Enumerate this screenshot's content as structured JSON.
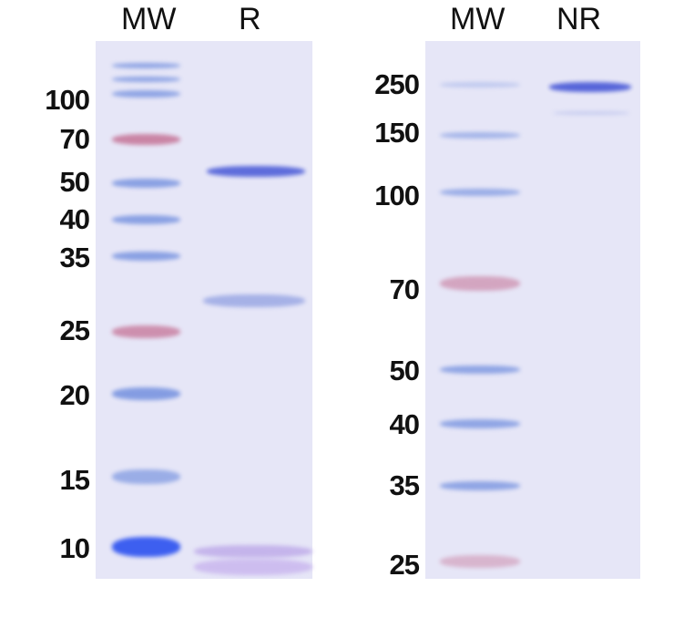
{
  "left_gel": {
    "lane_labels": [
      "MW",
      "R"
    ],
    "marker_labels": [
      "100",
      "70",
      "50",
      "40",
      "35",
      "25",
      "20",
      "15",
      "10"
    ]
  },
  "right_gel": {
    "lane_labels": [
      "MW",
      "NR"
    ],
    "marker_labels": [
      "250",
      "150",
      "100",
      "70",
      "50",
      "40",
      "35",
      "25"
    ]
  },
  "colors": {
    "gel_background": "#e6e6f7",
    "ladder_blue": "#7a95e0",
    "ladder_red": "#c77a9c",
    "sample_band": "#4f5fd8"
  }
}
